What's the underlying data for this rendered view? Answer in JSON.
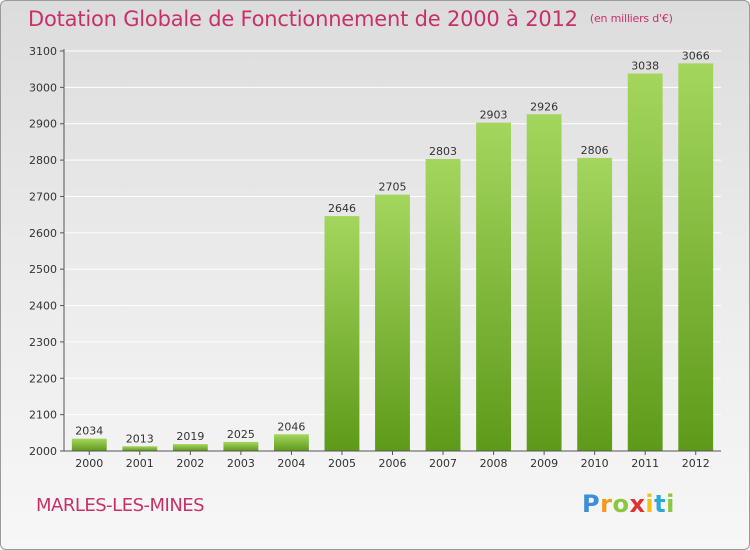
{
  "title": "Dotation Globale de Fonctionnement de 2000 à 2012",
  "unit": "(en milliers d'€)",
  "commune": "MARLES-LES-MINES",
  "logo": {
    "letters": [
      "P",
      "r",
      "o",
      "x",
      "i",
      "t",
      "i"
    ],
    "colors": [
      "#3a8fd6",
      "#f29a1f",
      "#8cc63f",
      "#e0332e",
      "#f2c21b",
      "#2fa7d8",
      "#8cc63f"
    ]
  },
  "colors": {
    "title": "#c8306a",
    "bar_top": "#a4d65e",
    "bar_bottom": "#5e9a1a",
    "grid": "#ffffff",
    "axis": "#555555"
  },
  "chart_data": {
    "type": "bar",
    "categories": [
      "2000",
      "2001",
      "2002",
      "2003",
      "2004",
      "2005",
      "2006",
      "2007",
      "2008",
      "2009",
      "2010",
      "2011",
      "2012"
    ],
    "values": [
      2034,
      2013,
      2019,
      2025,
      2046,
      2646,
      2705,
      2803,
      2903,
      2926,
      2806,
      3038,
      3066
    ],
    "yticks": [
      2000,
      2100,
      2200,
      2300,
      2400,
      2500,
      2600,
      2700,
      2800,
      2900,
      3000,
      3100
    ],
    "ylim": [
      2000,
      3100
    ],
    "grid": true,
    "xlabel": "",
    "ylabel": ""
  }
}
